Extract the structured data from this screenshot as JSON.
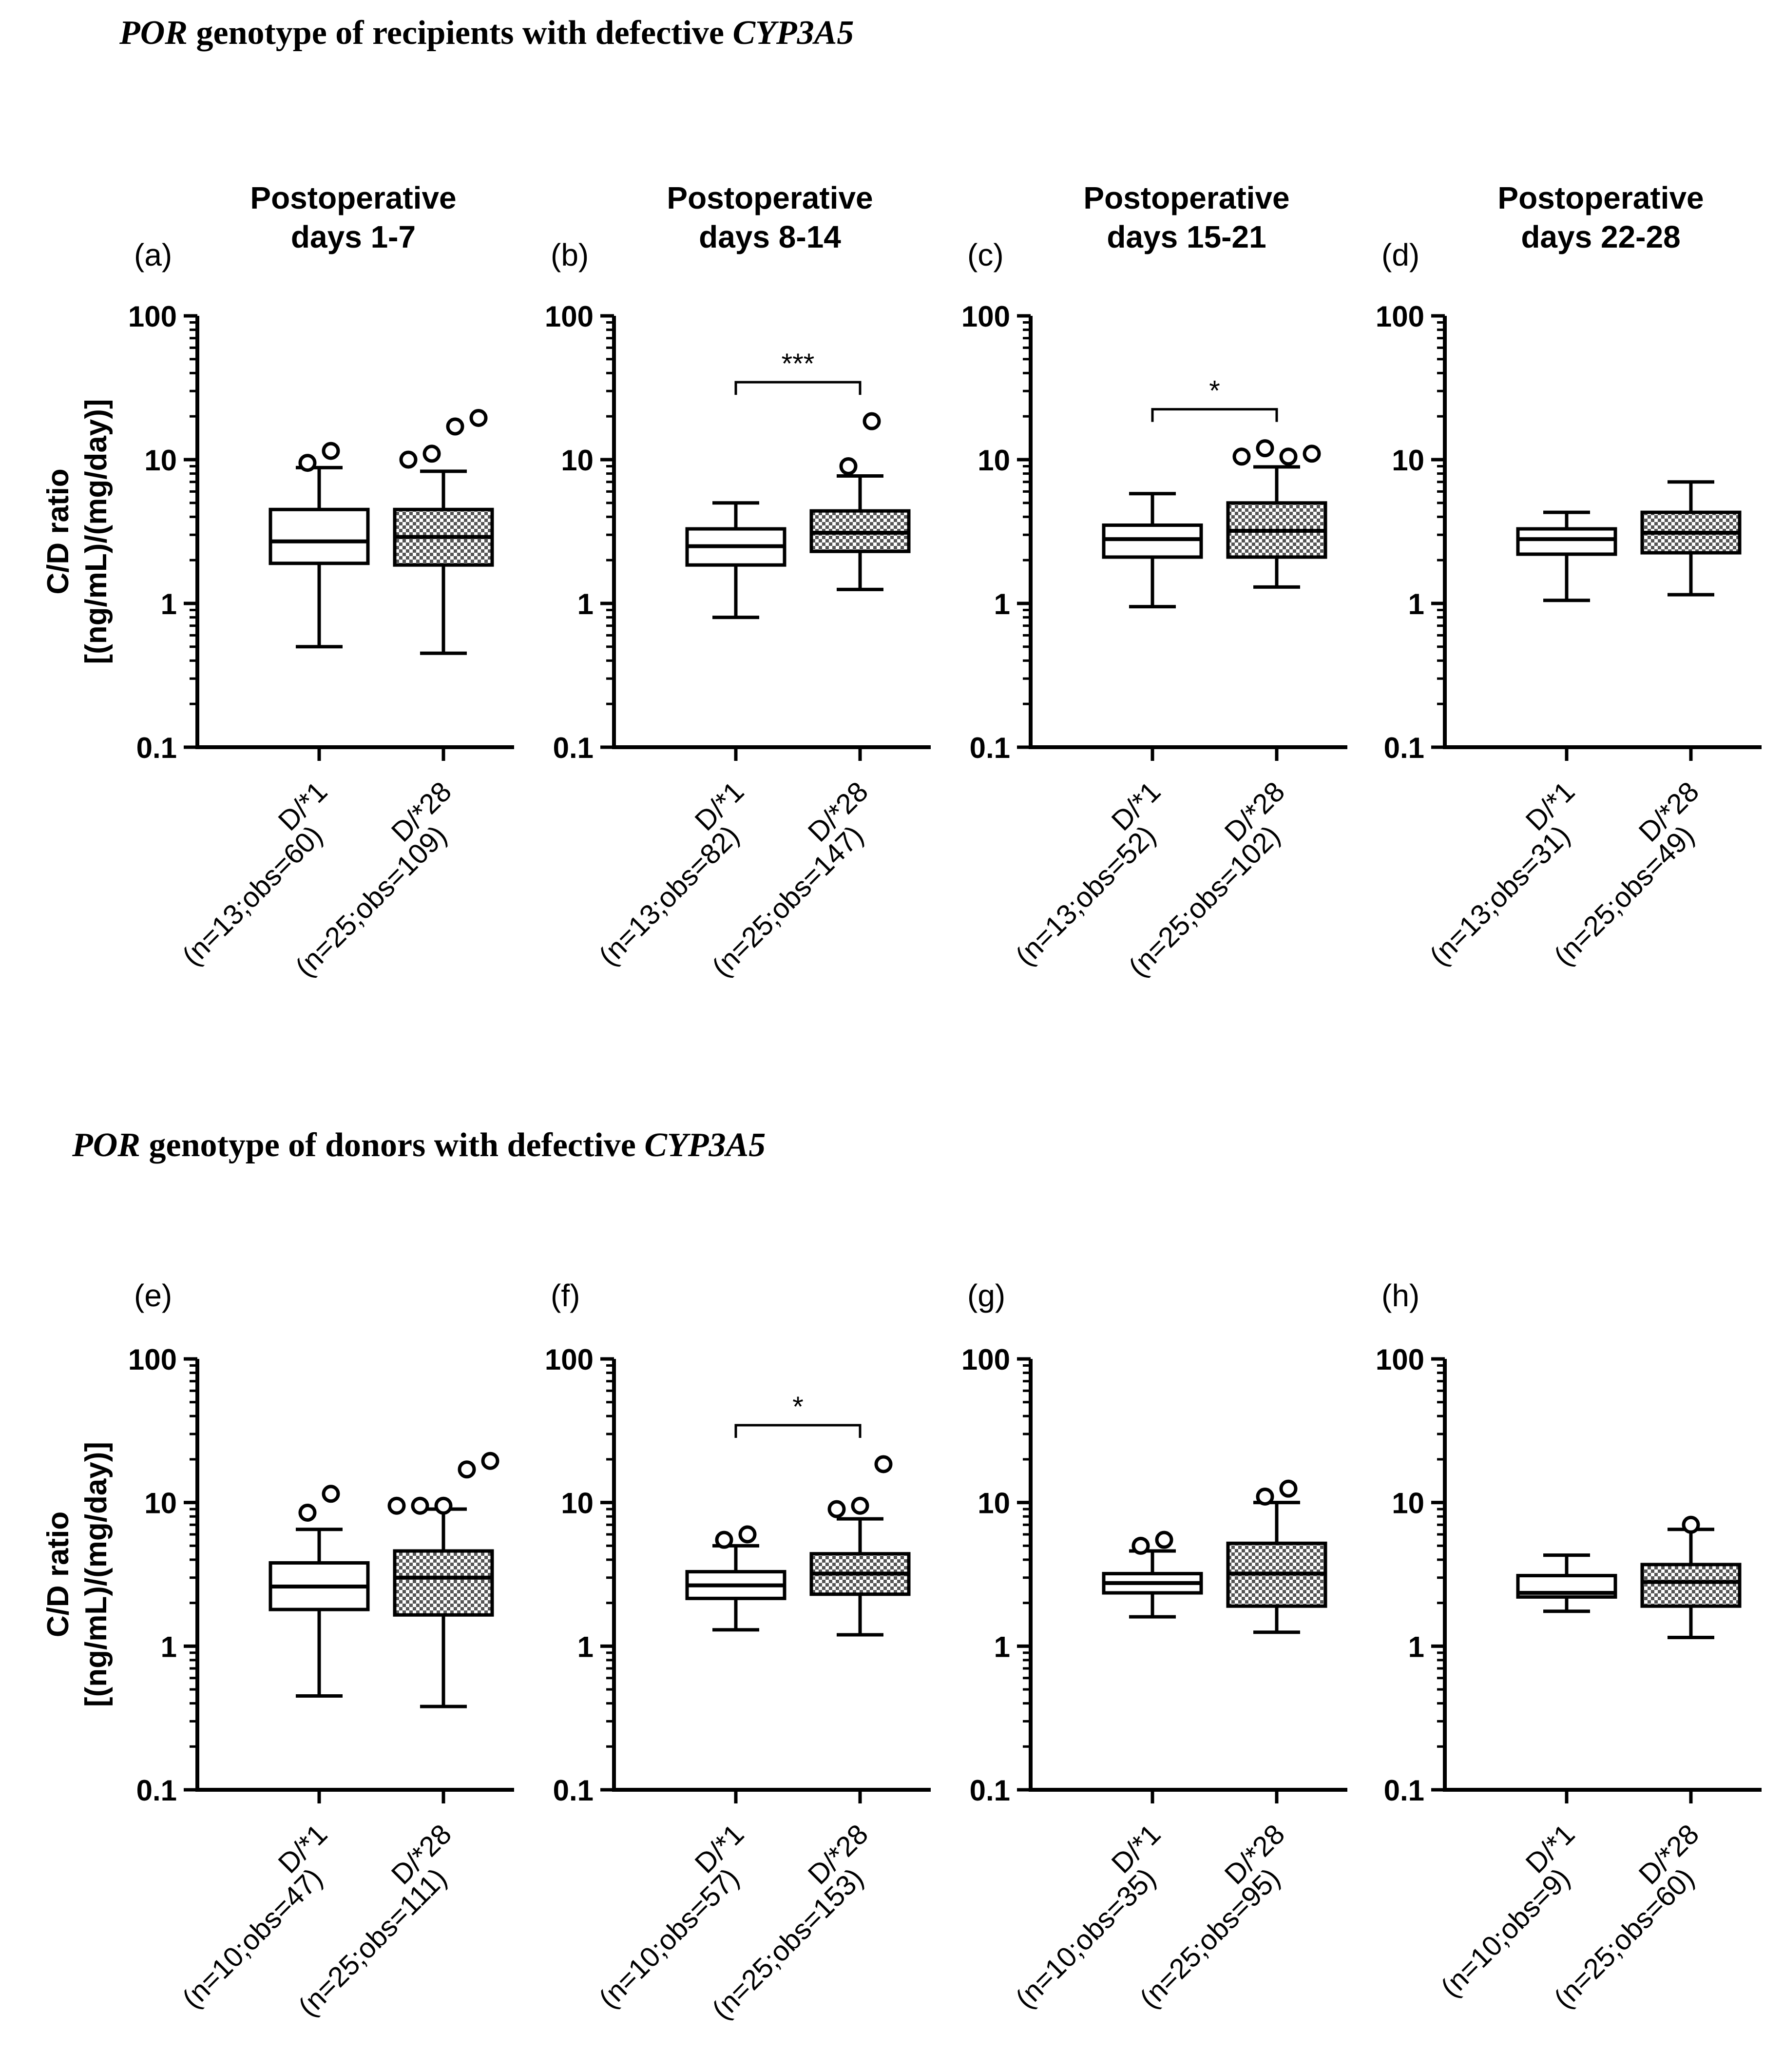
{
  "section_titles": {
    "top": {
      "italic_prefix": "POR",
      "middle": " genotype of recipients with defective ",
      "italic_suffix": "CYP3A5"
    },
    "bottom": {
      "italic_prefix": "POR",
      "middle": " genotype of donors with defective ",
      "italic_suffix": "CYP3A5"
    }
  },
  "y_axis_title": {
    "line1": "C/D ratio",
    "line2": "[(ng/mL)/(mg/day)]"
  },
  "colors": {
    "stroke": "#000000",
    "background": "#ffffff",
    "checker": "#555555"
  },
  "chart_data": [
    {
      "panel": "(a)",
      "type": "box",
      "title": [
        "Postoperative",
        "days 1-7"
      ],
      "y_scale": "log",
      "ylim": [
        0.1,
        100
      ],
      "y_ticks": [
        "100",
        "10",
        "1",
        "0.1"
      ],
      "categories": [
        {
          "label": "D/*1",
          "sublabel": "(n=13;obs=60)",
          "pattern": "open",
          "whisker_low": 0.5,
          "q1": 1.9,
          "median": 2.7,
          "q3": 4.5,
          "whisker_high": 8.8,
          "outliers": [
            9.5,
            11.5
          ]
        },
        {
          "label": "D/*28",
          "sublabel": "(n=25;obs=109)",
          "pattern": "checkered",
          "whisker_low": 0.45,
          "q1": 1.85,
          "median": 2.9,
          "q3": 4.5,
          "whisker_high": 8.3,
          "outliers": [
            10,
            11,
            17,
            19.5
          ]
        }
      ],
      "significance": null
    },
    {
      "panel": "(b)",
      "type": "box",
      "title": [
        "Postoperative",
        "days 8-14"
      ],
      "y_scale": "log",
      "ylim": [
        0.1,
        100
      ],
      "y_ticks": [
        "100",
        "10",
        "1",
        "0.1"
      ],
      "categories": [
        {
          "label": "D/*1",
          "sublabel": "(n=13;obs=82)",
          "pattern": "open",
          "whisker_low": 0.8,
          "q1": 1.85,
          "median": 2.5,
          "q3": 3.3,
          "whisker_high": 5.0,
          "outliers": []
        },
        {
          "label": "D/*28",
          "sublabel": "(n=25;obs=147)",
          "pattern": "checkered",
          "whisker_low": 1.25,
          "q1": 2.3,
          "median": 3.1,
          "q3": 4.4,
          "whisker_high": 7.7,
          "outliers": [
            9,
            18.5
          ]
        }
      ],
      "significance": "***"
    },
    {
      "panel": "(c)",
      "type": "box",
      "title": [
        "Postoperative",
        "days 15-21"
      ],
      "y_scale": "log",
      "ylim": [
        0.1,
        100
      ],
      "y_ticks": [
        "100",
        "10",
        "1",
        "0.1"
      ],
      "categories": [
        {
          "label": "D/*1",
          "sublabel": "(n=13;obs=52)",
          "pattern": "open",
          "whisker_low": 0.95,
          "q1": 2.1,
          "median": 2.8,
          "q3": 3.5,
          "whisker_high": 5.8,
          "outliers": []
        },
        {
          "label": "D/*28",
          "sublabel": "(n=25;obs=102)",
          "pattern": "checkered",
          "whisker_low": 1.3,
          "q1": 2.1,
          "median": 3.2,
          "q3": 5.0,
          "whisker_high": 8.9,
          "outliers": [
            10.5,
            12,
            10.5,
            11
          ]
        }
      ],
      "significance": "*"
    },
    {
      "panel": "(d)",
      "type": "box",
      "title": [
        "Postoperative",
        "days 22-28"
      ],
      "y_scale": "log",
      "ylim": [
        0.1,
        100
      ],
      "y_ticks": [
        "100",
        "10",
        "1",
        "0.1"
      ],
      "categories": [
        {
          "label": "D/*1",
          "sublabel": "(n=13;obs=31)",
          "pattern": "open",
          "whisker_low": 1.05,
          "q1": 2.2,
          "median": 2.8,
          "q3": 3.3,
          "whisker_high": 4.3,
          "outliers": []
        },
        {
          "label": "D/*28",
          "sublabel": "(n=25;obs=49)",
          "pattern": "checkered",
          "whisker_low": 1.15,
          "q1": 2.25,
          "median": 3.1,
          "q3": 4.3,
          "whisker_high": 7.0,
          "outliers": []
        }
      ],
      "significance": null
    },
    {
      "panel": "(e)",
      "type": "box",
      "title": [],
      "y_scale": "log",
      "ylim": [
        0.1,
        100
      ],
      "y_ticks": [
        "100",
        "10",
        "1",
        "0.1"
      ],
      "categories": [
        {
          "label": "D/*1",
          "sublabel": "(n=10;obs=47)",
          "pattern": "open",
          "whisker_low": 0.45,
          "q1": 1.8,
          "median": 2.6,
          "q3": 3.8,
          "whisker_high": 6.5,
          "outliers": [
            8.5,
            11.5
          ]
        },
        {
          "label": "D/*28",
          "sublabel": "(n=25;obs=111)",
          "pattern": "checkered",
          "whisker_low": 0.38,
          "q1": 1.65,
          "median": 3.0,
          "q3": 4.6,
          "whisker_high": 9.0,
          "outliers": [
            9.5,
            9.5,
            9.5,
            17,
            19.5
          ]
        }
      ],
      "significance": null
    },
    {
      "panel": "(f)",
      "type": "box",
      "title": [],
      "y_scale": "log",
      "ylim": [
        0.1,
        100
      ],
      "y_ticks": [
        "100",
        "10",
        "1",
        "0.1"
      ],
      "categories": [
        {
          "label": "D/*1",
          "sublabel": "(n=10;obs=57)",
          "pattern": "open",
          "whisker_low": 1.3,
          "q1": 2.15,
          "median": 2.65,
          "q3": 3.3,
          "whisker_high": 5.0,
          "outliers": [
            5.5,
            6.0
          ]
        },
        {
          "label": "D/*28",
          "sublabel": "(n=25;obs=153)",
          "pattern": "checkered",
          "whisker_low": 1.2,
          "q1": 2.3,
          "median": 3.2,
          "q3": 4.4,
          "whisker_high": 7.7,
          "outliers": [
            9,
            9.5,
            18.5
          ]
        }
      ],
      "significance": "*"
    },
    {
      "panel": "(g)",
      "type": "box",
      "title": [],
      "y_scale": "log",
      "ylim": [
        0.1,
        100
      ],
      "y_ticks": [
        "100",
        "10",
        "1",
        "0.1"
      ],
      "categories": [
        {
          "label": "D/*1",
          "sublabel": "(n=10;obs=35)",
          "pattern": "open",
          "whisker_low": 1.6,
          "q1": 2.35,
          "median": 2.75,
          "q3": 3.2,
          "whisker_high": 4.6,
          "outliers": [
            5.0,
            5.5
          ]
        },
        {
          "label": "D/*28",
          "sublabel": "(n=25;obs=95)",
          "pattern": "checkered",
          "whisker_low": 1.25,
          "q1": 1.9,
          "median": 3.2,
          "q3": 5.2,
          "whisker_high": 10.0,
          "outliers": [
            11,
            12.5
          ]
        }
      ],
      "significance": null
    },
    {
      "panel": "(h)",
      "type": "box",
      "title": [],
      "y_scale": "log",
      "ylim": [
        0.1,
        100
      ],
      "y_ticks": [
        "100",
        "10",
        "1",
        "0.1"
      ],
      "categories": [
        {
          "label": "D/*1",
          "sublabel": "(n=10;obs=9)",
          "pattern": "open",
          "whisker_low": 1.75,
          "q1": 2.2,
          "median": 2.35,
          "q3": 3.1,
          "whisker_high": 4.3,
          "outliers": []
        },
        {
          "label": "D/*28",
          "sublabel": "(n=25;obs=60)",
          "pattern": "checkered",
          "whisker_low": 1.15,
          "q1": 1.9,
          "median": 2.8,
          "q3": 3.7,
          "whisker_high": 6.5,
          "outliers": [
            7.0
          ]
        }
      ],
      "significance": null
    }
  ]
}
